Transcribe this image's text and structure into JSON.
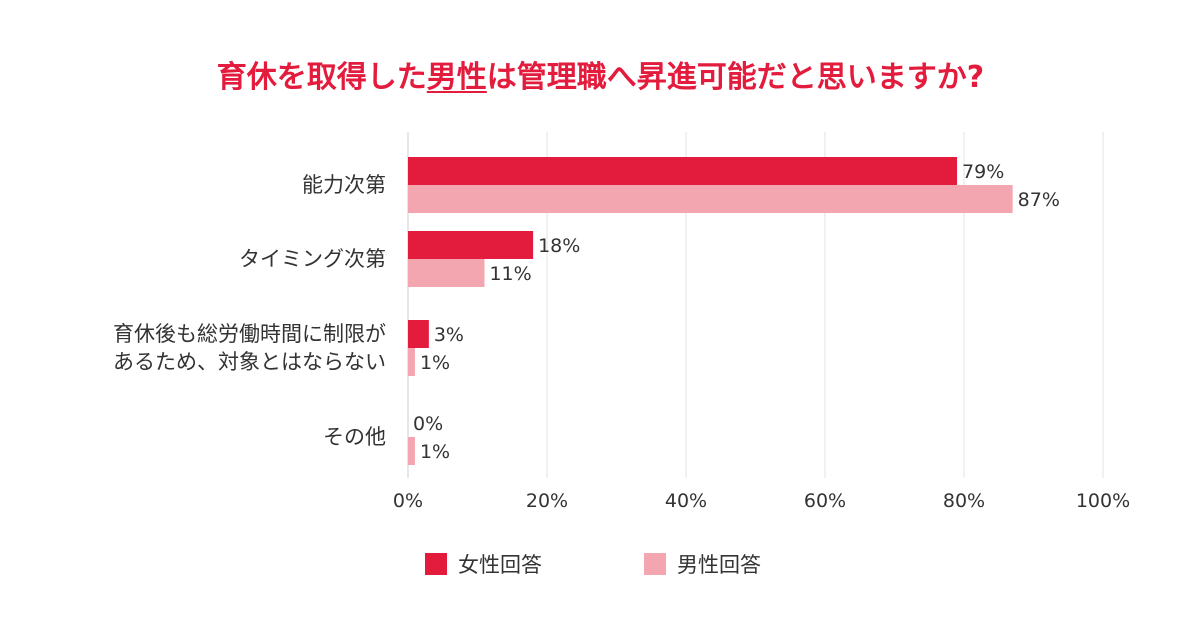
{
  "title": {
    "before": "育休を取得した",
    "emphasis": "男性",
    "after": "は管理職へ昇進可能だと思いますか?"
  },
  "colors": {
    "female": "#e31b3c",
    "male": "#f4a6b0",
    "title": "#e31b3c",
    "grid": "#e3e3e3"
  },
  "chart_data": {
    "type": "bar",
    "orientation": "horizontal",
    "categories": [
      [
        "能力次第"
      ],
      [
        "タイミング次第"
      ],
      [
        "育休後も総労働時間に制限が",
        "あるため、対象とはならない"
      ],
      [
        "その他"
      ]
    ],
    "series": [
      {
        "name": "女性回答",
        "values": [
          79,
          18,
          3,
          0
        ],
        "labels": [
          "79%",
          "18%",
          "3%",
          "0%"
        ]
      },
      {
        "name": "男性回答",
        "values": [
          87,
          11,
          1,
          1
        ],
        "labels": [
          "87%",
          "11%",
          "1%",
          "1%"
        ]
      }
    ],
    "xlim": [
      0,
      100
    ],
    "xticks": [
      "0%",
      "20%",
      "40%",
      "60%",
      "80%",
      "100%"
    ],
    "grid": true,
    "legend": "bottom-center"
  }
}
